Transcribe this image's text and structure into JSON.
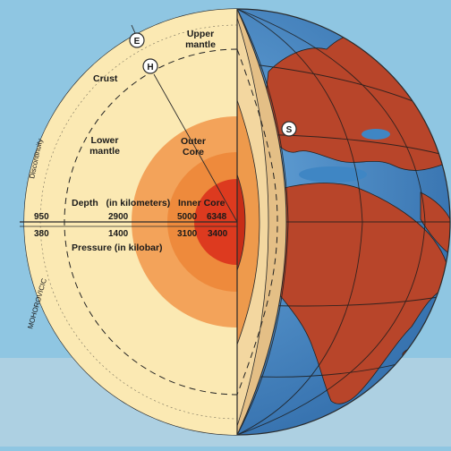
{
  "labels": {
    "upper_mantle_1": "Upper",
    "upper_mantle_2": "mantle",
    "crust": "Crust",
    "lower_mantle_1": "Lower",
    "lower_mantle_2": "mantle",
    "outer_core_1": "Outer",
    "outer_core_2": "Core",
    "discontinuity": "Discontinuity",
    "mohorovicic": "MOHOROVICIC",
    "depth_heading": "Depth   (in kilometers)",
    "inner_core": "Inner Core",
    "pressure_heading": "Pressure (in kilobar)"
  },
  "markers": {
    "e": "E",
    "h": "H",
    "s": "S"
  },
  "depth_km": [
    "950",
    "2900",
    "5000",
    "6348"
  ],
  "pressure_kbar": [
    "380",
    "1400",
    "3100",
    "3400"
  ],
  "colors": {
    "sky": "#8fc6e2",
    "ocean": "#3f86c4",
    "land": "#b8452a",
    "crust_mantle": "#fbe9b3",
    "outer_core": "#f3a35a",
    "inner_core_halo": "#ee8a3c",
    "inner_core": "#dd3a1f",
    "shell": "#e4bf86"
  }
}
